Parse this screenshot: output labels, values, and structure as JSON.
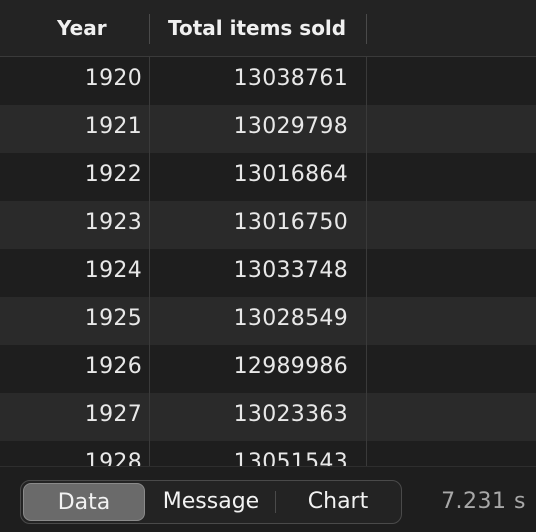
{
  "table": {
    "columns": [
      {
        "label": "Year"
      },
      {
        "label": "Total items sold"
      }
    ],
    "rows": [
      {
        "year": "1920",
        "total": "13038761"
      },
      {
        "year": "1921",
        "total": "13029798"
      },
      {
        "year": "1922",
        "total": "13016864"
      },
      {
        "year": "1923",
        "total": "13016750"
      },
      {
        "year": "1924",
        "total": "13033748"
      },
      {
        "year": "1925",
        "total": "13028549"
      },
      {
        "year": "1926",
        "total": "12989986"
      },
      {
        "year": "1927",
        "total": "13023363"
      },
      {
        "year": "1928",
        "total": "13051543"
      }
    ]
  },
  "footer": {
    "tabs": [
      {
        "label": "Data",
        "selected": true
      },
      {
        "label": "Message",
        "selected": false
      },
      {
        "label": "Chart",
        "selected": false
      }
    ],
    "timing": "7.231 s"
  }
}
